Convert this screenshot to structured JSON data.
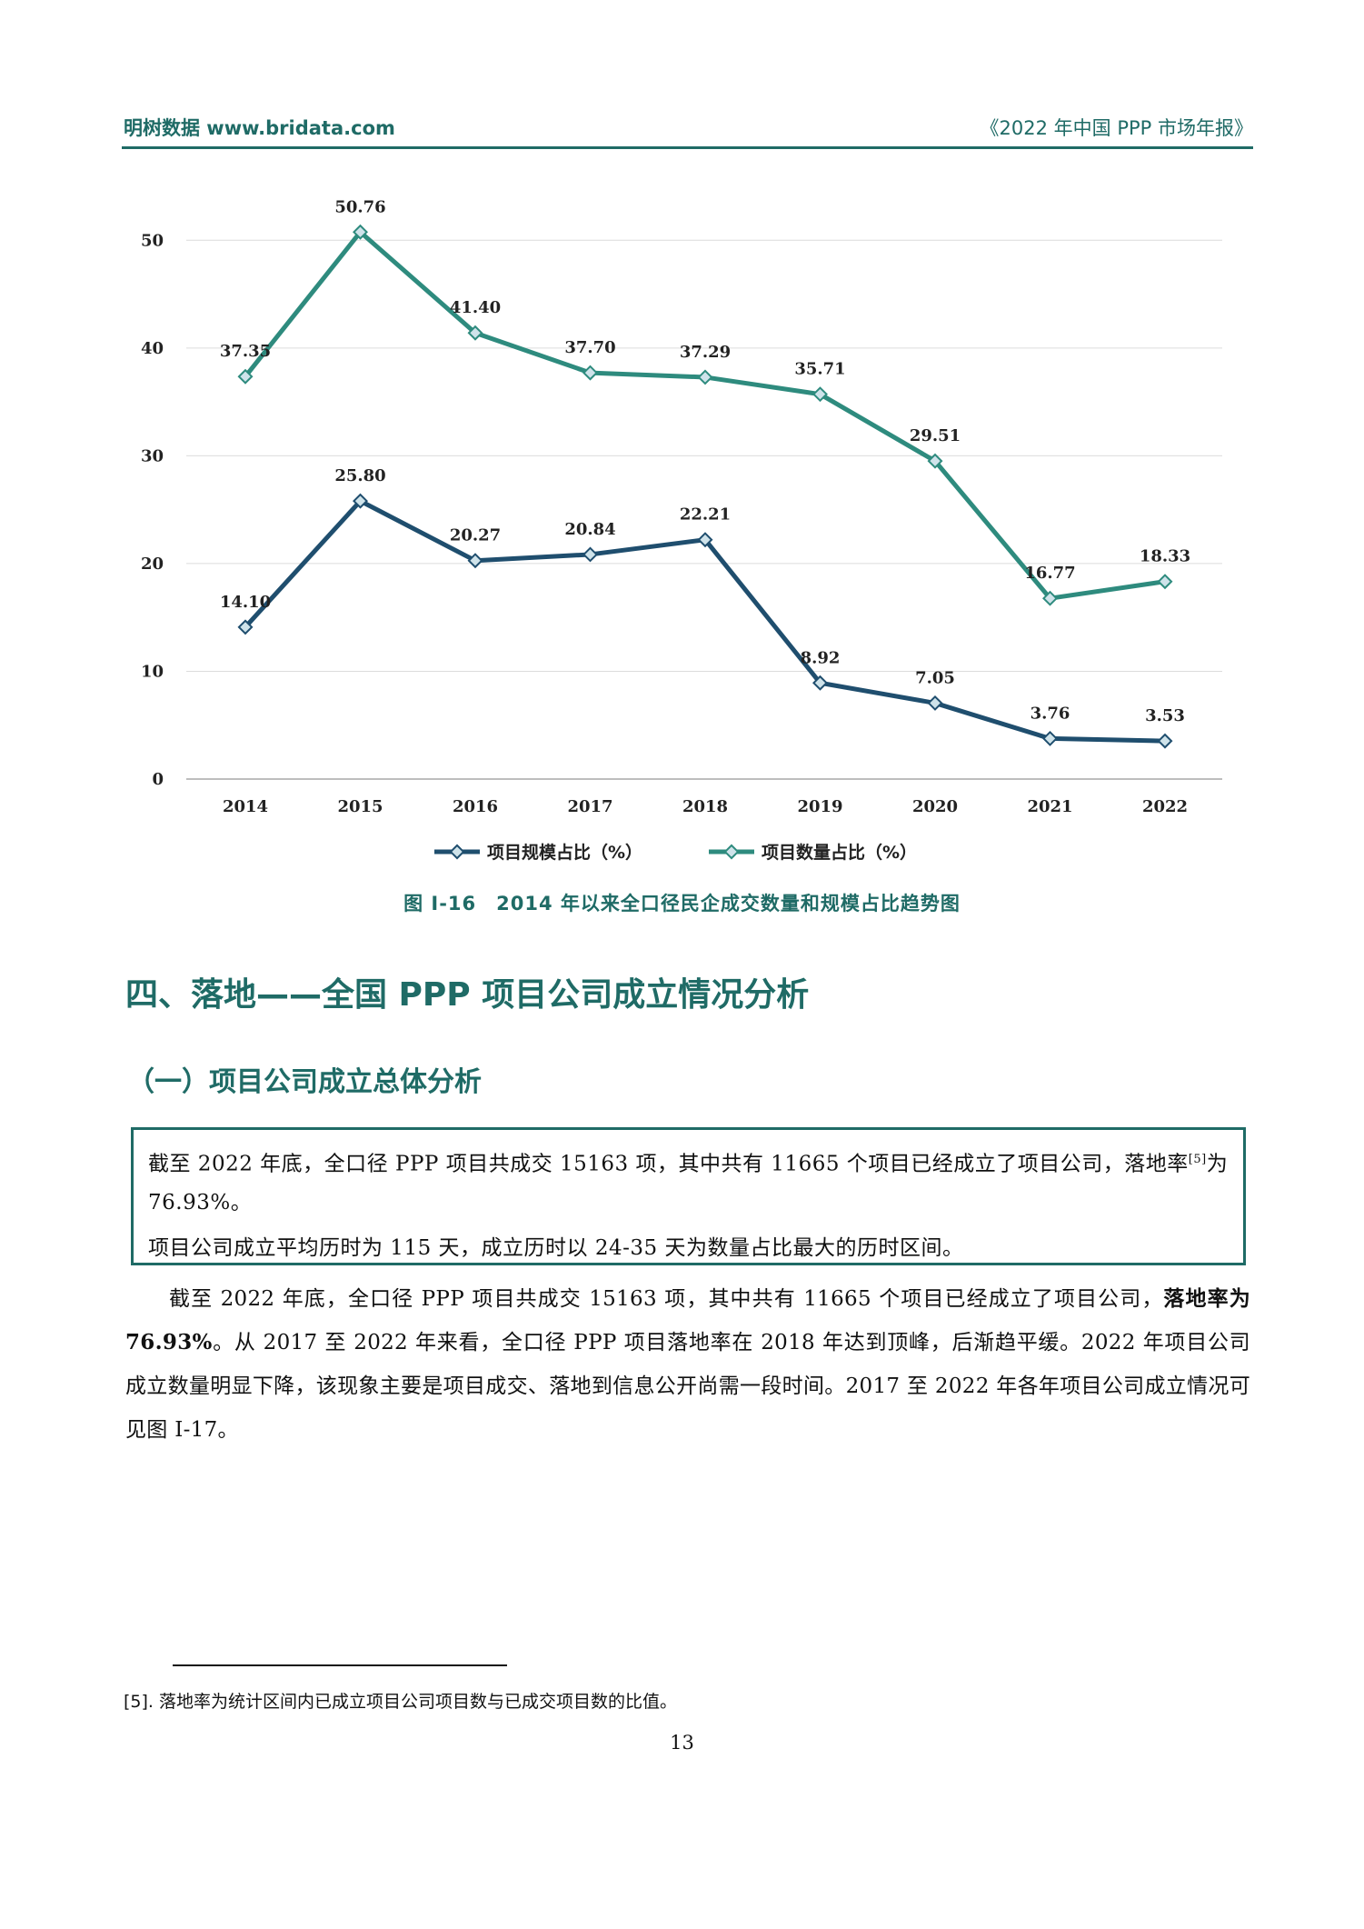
{
  "header": {
    "left": "明树数据 www.bridata.com",
    "right": "《2022 年中国 PPP 市场年报》"
  },
  "colors": {
    "brand": "#1f6b66",
    "series_scale": "#1f4e6e",
    "series_count": "#2e8b7e"
  },
  "chart_data": {
    "type": "line",
    "categories": [
      "2014",
      "2015",
      "2016",
      "2017",
      "2018",
      "2019",
      "2020",
      "2021",
      "2022"
    ],
    "yticks": [
      "0",
      "10",
      "20",
      "30",
      "40",
      "50"
    ],
    "ylim": [
      0,
      55
    ],
    "series": [
      {
        "name": "项目规模占比（%）",
        "values": [
          14.1,
          25.8,
          20.27,
          20.84,
          22.21,
          8.92,
          7.05,
          3.76,
          3.53
        ],
        "labels": [
          "14.10",
          "25.80",
          "20.27",
          "20.84",
          "22.21",
          "8.92",
          "7.05",
          "3.76",
          "3.53"
        ]
      },
      {
        "name": "项目数量占比（%）",
        "values": [
          37.35,
          50.76,
          41.4,
          37.7,
          37.29,
          35.71,
          29.51,
          16.77,
          18.33
        ],
        "labels": [
          "37.35",
          "50.76",
          "41.40",
          "37.70",
          "37.29",
          "35.71",
          "29.51",
          "16.77",
          "18.33"
        ]
      }
    ],
    "legend_position": "bottom"
  },
  "caption": "图 I-16　2014 年以来全口径民企成交数量和规模占比趋势图",
  "section_title": "四、落地——全国 PPP 项目公司成立情况分析",
  "subsection_title": "（一）项目公司成立总体分析",
  "summary": {
    "line1": "截至 2022 年底，全口径 PPP 项目共成交 15163 项，其中共有 11665 个项目已经成立了项目公司，落地率",
    "footnote_mark": "[5]",
    "line1_end": "为 76.93%。",
    "line2": "项目公司成立平均历时为 115 天，成立历时以 24-35 天为数量占比最大的历时区间。"
  },
  "body": {
    "part1": "截至 2022 年底，全口径 PPP 项目共成交 15163 项，其中共有 11665 个项目已经成立了项目公司，",
    "bold": "落地率为 76.93%",
    "part2": "。从 2017 至 2022 年来看，全口径 PPP 项目落地率在 2018 年达到顶峰，后渐趋平缓。2022 年项目公司成立数量明显下降，该现象主要是项目成交、落地到信息公开尚需一段时间。2017 至 2022 年各年项目公司成立情况可见图 I-17。"
  },
  "footnote": "[5]. 落地率为统计区间内已成立项目公司项目数与已成交项目数的比值。",
  "page_number": "13"
}
